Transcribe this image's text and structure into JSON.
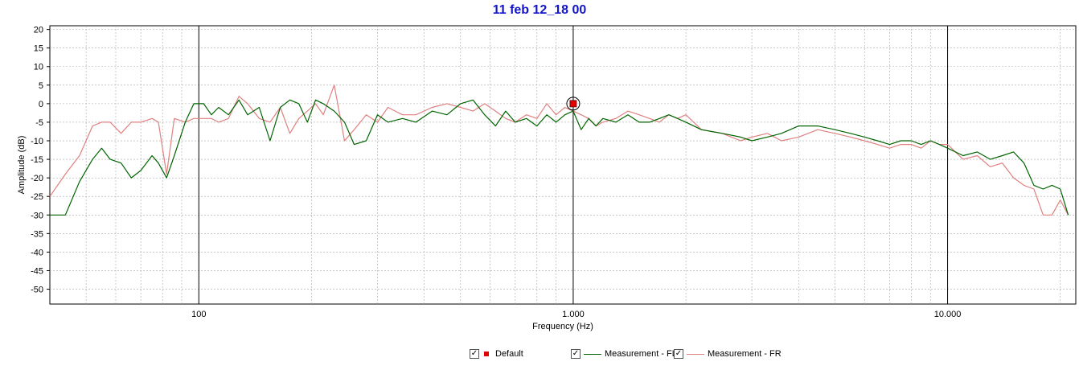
{
  "chart_data": {
    "type": "line",
    "title": "11 feb 12_18 00",
    "xlabel": "Frequency (Hz)",
    "ylabel": "Amplitude (dB)",
    "x_scale": "log",
    "xlim": [
      40,
      22000
    ],
    "ylim": [
      -54,
      21
    ],
    "x_major_ticks": [
      100,
      1000,
      10000
    ],
    "x_tick_labels": [
      "100",
      "1.000",
      "10.000"
    ],
    "y_ticks": [
      20,
      15,
      10,
      5,
      0,
      -5,
      -10,
      -15,
      -20,
      -25,
      -30,
      -35,
      -40,
      -45,
      -50
    ],
    "y_tick_labels": [
      "20",
      "15",
      "10",
      "5",
      "0",
      "-5",
      "-10",
      "-15",
      "-20",
      "-25",
      "-30",
      "-35",
      "-40",
      "-45",
      "-50"
    ],
    "grid": true,
    "legend_position": "bottom",
    "markers": [
      {
        "name": "Default",
        "x": 1000,
        "y": 0,
        "color": "#e00000"
      }
    ],
    "series": [
      {
        "name": "Measurement - FL",
        "color": "#006400",
        "x": [
          40,
          44,
          48,
          52,
          55,
          58,
          62,
          66,
          70,
          75,
          78,
          82,
          86,
          92,
          97,
          103,
          108,
          113,
          120,
          128,
          135,
          145,
          155,
          165,
          175,
          185,
          195,
          205,
          215,
          230,
          245,
          260,
          280,
          300,
          320,
          350,
          380,
          420,
          460,
          500,
          540,
          580,
          620,
          660,
          700,
          750,
          800,
          850,
          900,
          950,
          1000,
          1050,
          1100,
          1150,
          1200,
          1300,
          1400,
          1500,
          1600,
          1700,
          1800,
          1900,
          2000,
          2200,
          2500,
          2800,
          3000,
          3300,
          3600,
          4000,
          4500,
          5000,
          5500,
          6000,
          6500,
          7000,
          7500,
          8000,
          8500,
          9000,
          9500,
          10000,
          11000,
          12000,
          13000,
          14000,
          15000,
          16000,
          17000,
          18000,
          19000,
          20000,
          21000
        ],
        "y": [
          -30,
          -30,
          -21,
          -15,
          -12,
          -15,
          -16,
          -20,
          -18,
          -14,
          -16,
          -20,
          -14,
          -5,
          0,
          0,
          -3,
          -1,
          -3,
          1,
          -3,
          -1,
          -10,
          -1,
          1,
          0,
          -5,
          1,
          0,
          -2,
          -5,
          -11,
          -10,
          -3,
          -5,
          -4,
          -5,
          -2,
          -3,
          0,
          1,
          -3,
          -6,
          -2,
          -5,
          -4,
          -6,
          -3,
          -5,
          -3,
          -2,
          -7,
          -4,
          -6,
          -4,
          -5,
          -3,
          -5,
          -5,
          -4,
          -3,
          -4,
          -5,
          -7,
          -8,
          -9,
          -10,
          -9,
          -8,
          -6,
          -6,
          -7,
          -8,
          -9,
          -10,
          -11,
          -10,
          -10,
          -11,
          -10,
          -11,
          -12,
          -14,
          -13,
          -15,
          -14,
          -13,
          -16,
          -22,
          -23,
          -22,
          -23,
          -30
        ]
      },
      {
        "name": "Measurement - FR",
        "color": "#e08080",
        "x": [
          40,
          44,
          48,
          52,
          55,
          58,
          62,
          66,
          70,
          75,
          78,
          82,
          86,
          92,
          97,
          103,
          108,
          113,
          120,
          128,
          135,
          145,
          155,
          165,
          175,
          185,
          195,
          205,
          215,
          230,
          245,
          260,
          280,
          300,
          320,
          350,
          380,
          420,
          460,
          500,
          540,
          580,
          620,
          660,
          700,
          750,
          800,
          850,
          900,
          950,
          1000,
          1050,
          1100,
          1150,
          1200,
          1300,
          1400,
          1500,
          1600,
          1700,
          1800,
          1900,
          2000,
          2200,
          2500,
          2800,
          3000,
          3300,
          3600,
          4000,
          4500,
          5000,
          5500,
          6000,
          6500,
          7000,
          7500,
          8000,
          8500,
          9000,
          9500,
          10000,
          11000,
          12000,
          13000,
          14000,
          15000,
          16000,
          17000,
          18000,
          19000,
          20000,
          21000
        ],
        "y": [
          -25,
          -19,
          -14,
          -6,
          -5,
          -5,
          -8,
          -5,
          -5,
          -4,
          -5,
          -19,
          -4,
          -5,
          -4,
          -4,
          -4,
          -5,
          -4,
          2,
          0,
          -4,
          -5,
          -1,
          -8,
          -4,
          -2,
          0,
          -3,
          5,
          -10,
          -7,
          -3,
          -5,
          -1,
          -3,
          -3,
          -1,
          0,
          -1,
          -2,
          0,
          -2,
          -4,
          -5,
          -3,
          -4,
          0,
          -3,
          -1,
          -2,
          -3,
          -4,
          -6,
          -5,
          -4,
          -2,
          -3,
          -4,
          -5,
          -3,
          -4,
          -3,
          -7,
          -8,
          -10,
          -9,
          -8,
          -10,
          -9,
          -7,
          -8,
          -9,
          -10,
          -11,
          -12,
          -11,
          -11,
          -12,
          -10,
          -11,
          -11,
          -15,
          -14,
          -17,
          -16,
          -20,
          -22,
          -23,
          -30,
          -30,
          -26,
          -30
        ]
      }
    ]
  },
  "legend": {
    "items": [
      {
        "label": "Default",
        "checked": "✓",
        "color": "#e00000"
      },
      {
        "label": "Measurement - FL",
        "checked": "✓",
        "color": "#006400"
      },
      {
        "label": "Measurement - FR",
        "checked": "✓",
        "color": "#e08080"
      }
    ]
  }
}
